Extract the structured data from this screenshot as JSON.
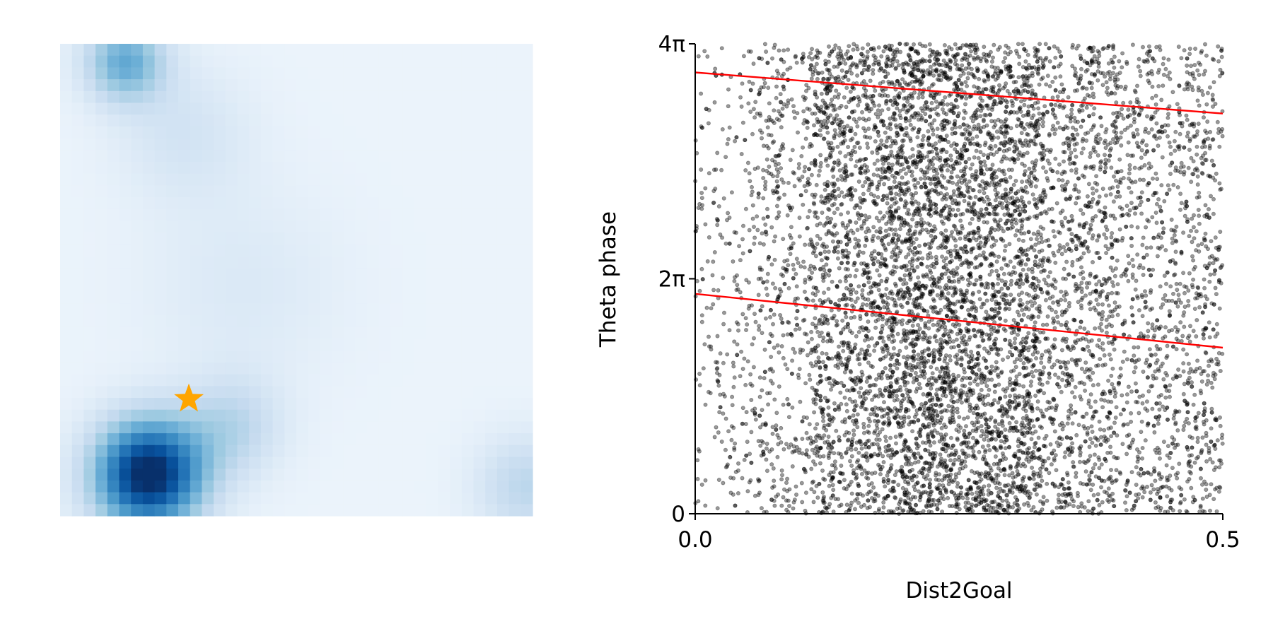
{
  "chart_data": [
    {
      "type": "heatmap",
      "title": "",
      "colormap": "Blues",
      "grid_size": [
        40,
        40
      ],
      "axes_visible": false,
      "peaks": [
        {
          "row": 36,
          "col": 7,
          "intensity": 1.0,
          "spread": 3.2
        },
        {
          "row": 1,
          "col": 5,
          "intensity": 0.45,
          "spread": 2.4
        },
        {
          "row": 32,
          "col": 14,
          "intensity": 0.22,
          "spread": 3.0
        },
        {
          "row": 7,
          "col": 10,
          "intensity": 0.12,
          "spread": 4.0
        },
        {
          "row": 37,
          "col": 39,
          "intensity": 0.22,
          "spread": 3.0
        },
        {
          "row": 20,
          "col": 15,
          "intensity": 0.08,
          "spread": 6.0
        }
      ],
      "baseline": 0.06,
      "marker": {
        "shape": "star",
        "color": "#FFA500",
        "row": 29.6,
        "col": 10.4,
        "label": "goal"
      }
    },
    {
      "type": "scatter",
      "title": "",
      "xlabel": "Dist2Goal",
      "ylabel": "Theta phase",
      "xlim": [
        0.0,
        0.5
      ],
      "ylim": [
        0,
        12.566
      ],
      "x_ticks": [
        {
          "value": 0.0,
          "label": "0.0"
        },
        {
          "value": 0.5,
          "label": "0.5"
        }
      ],
      "y_ticks": [
        {
          "value": 0,
          "label": "0"
        },
        {
          "value": 6.283,
          "label": "2π"
        },
        {
          "value": 12.566,
          "label": "4π"
        }
      ],
      "point_color": "#000000",
      "point_alpha": 0.4,
      "point_count": 9000,
      "x_distribution": [
        {
          "from": 0.0,
          "to": 0.06,
          "weight": 0.25
        },
        {
          "from": 0.06,
          "to": 0.11,
          "weight": 0.6
        },
        {
          "from": 0.11,
          "to": 0.18,
          "weight": 1.3
        },
        {
          "from": 0.18,
          "to": 0.25,
          "weight": 1.9
        },
        {
          "from": 0.25,
          "to": 0.33,
          "weight": 1.7
        },
        {
          "from": 0.33,
          "to": 0.4,
          "weight": 1.0
        },
        {
          "from": 0.4,
          "to": 0.5,
          "weight": 0.7
        }
      ],
      "fit_lines": [
        {
          "color": "#FF0000",
          "x": [
            0.0,
            0.5
          ],
          "y": [
            11.8,
            10.7
          ]
        },
        {
          "color": "#FF0000",
          "x": [
            0.0,
            0.5
          ],
          "y": [
            5.88,
            4.44
          ]
        }
      ]
    }
  ]
}
